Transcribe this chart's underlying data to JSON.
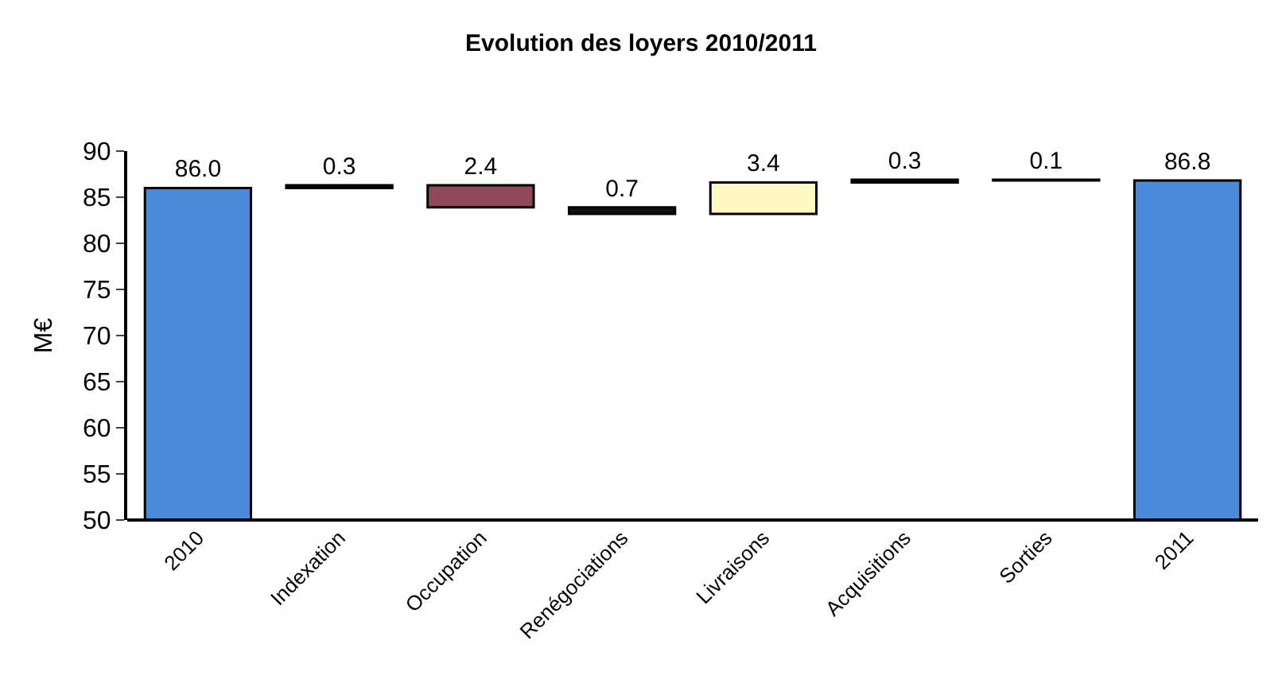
{
  "chart_data": {
    "type": "bar",
    "title": "Evolution des loyers 2010/2011",
    "ylabel": "M€",
    "categories": [
      "2010",
      "Indexation",
      "Occupation",
      "Renégociations",
      "Livraisons",
      "Acquisitions",
      "Sorties",
      "2011"
    ],
    "values": [
      86.0,
      0.3,
      2.4,
      0.7,
      3.4,
      0.3,
      0.1,
      86.8
    ],
    "base": [
      null,
      86.0,
      83.9,
      83.2,
      83.2,
      86.6,
      86.8,
      null
    ],
    "colors": [
      "#4a8ad8",
      "#111111",
      "#8e4a58",
      "#111111",
      "#fff8c4",
      "#111111",
      "#111111",
      "#4a8ad8"
    ],
    "ylim": [
      50,
      90
    ],
    "yticks": [
      50,
      55,
      60,
      65,
      70,
      75,
      80,
      85,
      90
    ],
    "value_labels": [
      "86.0",
      "0.3",
      "2.4",
      "0.7",
      "3.4",
      "0.3",
      "0.1",
      "86.8"
    ],
    "legend": false
  }
}
